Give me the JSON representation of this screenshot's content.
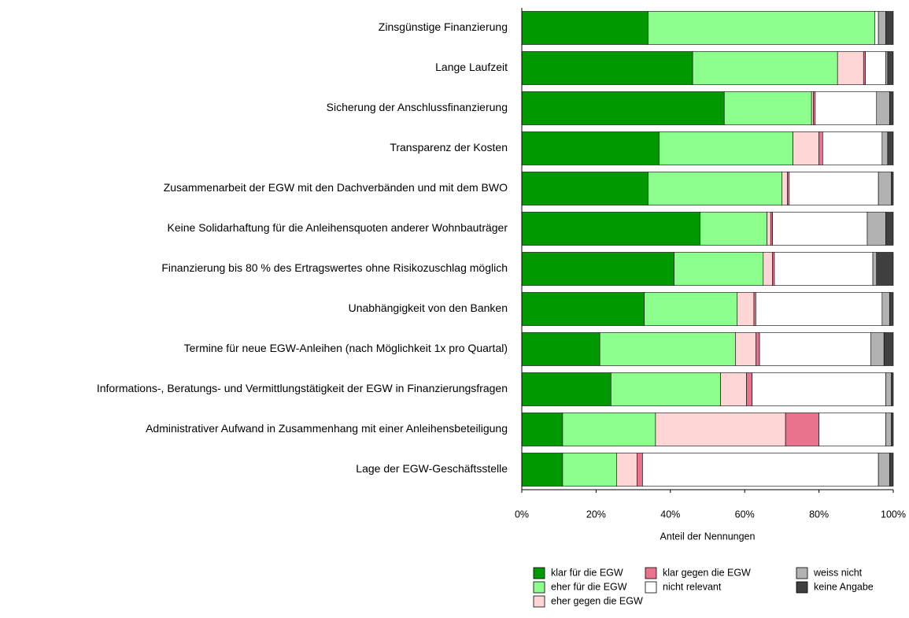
{
  "chart_data": {
    "type": "stacked-barh",
    "categories": [
      "Zinsgünstige Finanzierung",
      "Lange Laufzeit",
      "Sicherung der Anschlussfinanzierung",
      "Transparenz der Kosten",
      "Zusammenarbeit der EGW mit den Dachverbänden und mit dem BWO",
      "Keine Solidarhaftung für die Anleihensquoten anderer Wohnbauträger",
      "Finanzierung bis 80 % des Ertragswertes ohne Risikozuschlag möglich",
      "Unabhängigkeit von den Banken",
      "Termine für neue EGW-Anleihen (nach Möglichkeit 1x pro Quartal)",
      "Informations-, Beratungs- und Vermittlungstätigkeit der EGW in Finanzierungsfragen",
      "Administrativer Aufwand in Zusammenhang mit einer Anleihensbeteiligung",
      "Lage der EGW-Geschäftsstelle"
    ],
    "series": [
      {
        "name": "klar für die EGW",
        "color": "#009a00",
        "values": [
          34,
          46,
          54.5,
          37,
          34,
          48,
          41,
          33,
          21,
          24,
          11,
          11
        ]
      },
      {
        "name": "eher für die EGW",
        "color": "#8cff8c",
        "values": [
          61,
          39,
          23.5,
          36,
          36,
          18,
          24,
          25,
          36.5,
          29.5,
          25,
          14.5
        ]
      },
      {
        "name": "eher gegen die EGW",
        "color": "#ffd6d6",
        "values": [
          0,
          7,
          0.5,
          7,
          1.5,
          1,
          2.5,
          4.5,
          5.5,
          7,
          35,
          5.5
        ]
      },
      {
        "name": "klar gegen die EGW",
        "color": "#e9738d",
        "values": [
          0,
          0.5,
          0.5,
          1,
          0.5,
          0.5,
          0.5,
          0.5,
          1,
          1.5,
          9,
          1.5
        ]
      },
      {
        "name": "nicht relevant",
        "color": "#ffffff",
        "values": [
          1,
          5.5,
          16.5,
          16,
          24,
          25.5,
          26.5,
          34,
          30,
          36,
          18,
          63.5
        ]
      },
      {
        "name": "weiss nicht",
        "color": "#b2b2b2",
        "values": [
          2,
          0.5,
          3.5,
          1.5,
          3.5,
          5,
          1,
          2,
          3.5,
          1.5,
          1.5,
          3
        ]
      },
      {
        "name": "keine Angabe",
        "color": "#404040",
        "values": [
          2,
          1.5,
          1,
          1.5,
          0.5,
          2,
          4.5,
          1,
          2.5,
          0.5,
          0.5,
          1
        ]
      }
    ],
    "xlabel": "Anteil der Nennungen",
    "xlim": [
      0,
      100
    ],
    "xticks": [
      {
        "value": 0,
        "label": "0%"
      },
      {
        "value": 20,
        "label": "20%"
      },
      {
        "value": 40,
        "label": "40%"
      },
      {
        "value": 60,
        "label": "60%"
      },
      {
        "value": 80,
        "label": "80%"
      },
      {
        "value": 100,
        "label": "100%"
      }
    ],
    "legend": "bottom"
  }
}
